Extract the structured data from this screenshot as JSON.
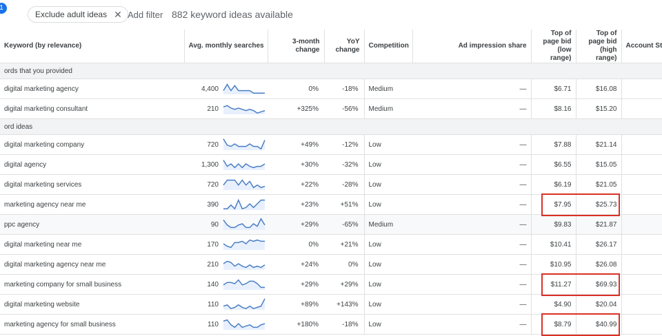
{
  "filter_badge": "1",
  "filter_chip": {
    "label": "Exclude adult ideas"
  },
  "add_filter": "Add filter",
  "ideas_count": "882 keyword ideas available",
  "columns": {
    "keyword": "Keyword (by relevance)",
    "searches": "Avg. monthly searches",
    "three_month": "3-month change",
    "yoy": "YoY change",
    "competition": "Competition",
    "ad_impression": "Ad impression share",
    "bid_low": "Top of page bid (low range)",
    "bid_high": "Top of page bid (high range)",
    "account_status": "Account Sta"
  },
  "sections": [
    {
      "label": "ords that you provided",
      "rows": [
        {
          "keyword": "digital marketing agency",
          "searches": "4,400",
          "three_month": "0%",
          "yoy": "-18%",
          "competition": "Medium",
          "ad_share": "—",
          "bid_low": "$6.71",
          "bid_high": "$16.08",
          "trend": [
            3,
            8,
            3,
            7,
            3,
            3,
            3,
            3,
            1,
            1,
            1,
            1
          ]
        },
        {
          "keyword": "digital marketing consultant",
          "searches": "210",
          "three_month": "+325%",
          "yoy": "-56%",
          "competition": "Medium",
          "ad_share": "—",
          "bid_low": "$8.16",
          "bid_high": "$15.20",
          "trend": [
            6,
            7,
            5,
            4,
            5,
            4,
            3,
            4,
            3,
            1,
            2,
            3
          ]
        }
      ]
    },
    {
      "label": "ord ideas",
      "rows": [
        {
          "keyword": "digital marketing company",
          "searches": "720",
          "three_month": "+49%",
          "yoy": "-12%",
          "competition": "Low",
          "ad_share": "—",
          "bid_low": "$7.88",
          "bid_high": "$21.14",
          "trend": [
            9,
            4,
            3,
            5,
            3,
            3,
            3,
            5,
            3,
            3,
            1,
            8
          ]
        },
        {
          "keyword": "digital agency",
          "searches": "1,300",
          "three_month": "+30%",
          "yoy": "-32%",
          "competition": "Low",
          "ad_share": "—",
          "bid_low": "$6.55",
          "bid_high": "$15.05",
          "trend": [
            8,
            3,
            5,
            2,
            5,
            2,
            5,
            3,
            2,
            3,
            3,
            5
          ]
        },
        {
          "keyword": "digital marketing services",
          "searches": "720",
          "three_month": "+22%",
          "yoy": "-28%",
          "competition": "Low",
          "ad_share": "—",
          "bid_low": "$6.19",
          "bid_high": "$21.05",
          "trend": [
            4,
            8,
            8,
            8,
            4,
            8,
            4,
            7,
            2,
            4,
            2,
            3
          ]
        },
        {
          "keyword": "marketing agency near me",
          "searches": "390",
          "three_month": "+23%",
          "yoy": "+51%",
          "competition": "Low",
          "ad_share": "—",
          "bid_low": "$7.95",
          "bid_high": "$25.73",
          "trend": [
            1,
            1,
            4,
            1,
            8,
            1,
            2,
            5,
            2,
            5,
            8,
            8
          ]
        },
        {
          "keyword": "ppc agency",
          "searches": "90",
          "three_month": "+29%",
          "yoy": "-65%",
          "competition": "Medium",
          "ad_share": "—",
          "bid_low": "$9.83",
          "bid_high": "$21.87",
          "trend": [
            8,
            4,
            2,
            2,
            4,
            5,
            2,
            2,
            5,
            3,
            9,
            4
          ]
        },
        {
          "keyword": "digital marketing near me",
          "searches": "170",
          "three_month": "0%",
          "yoy": "+21%",
          "competition": "Low",
          "ad_share": "—",
          "bid_low": "$10.41",
          "bid_high": "$26.17",
          "trend": [
            5,
            3,
            2,
            6,
            6,
            7,
            5,
            8,
            7,
            8,
            7,
            7
          ]
        },
        {
          "keyword": "digital marketing agency near me",
          "searches": "210",
          "three_month": "+24%",
          "yoy": "0%",
          "competition": "Low",
          "ad_share": "—",
          "bid_low": "$10.95",
          "bid_high": "$26.08",
          "trend": [
            5,
            7,
            6,
            3,
            5,
            3,
            2,
            4,
            2,
            3,
            2,
            4
          ]
        },
        {
          "keyword": "marketing company for small business",
          "searches": "140",
          "three_month": "+29%",
          "yoy": "+29%",
          "competition": "Low",
          "ad_share": "—",
          "bid_low": "$11.27",
          "bid_high": "$69.93",
          "trend": [
            4,
            6,
            6,
            5,
            8,
            4,
            5,
            7,
            7,
            5,
            2,
            2
          ]
        },
        {
          "keyword": "digital marketing website",
          "searches": "110",
          "three_month": "+89%",
          "yoy": "+143%",
          "competition": "Low",
          "ad_share": "—",
          "bid_low": "$4.90",
          "bid_high": "$20.04",
          "trend": [
            3,
            4,
            1,
            2,
            4,
            2,
            1,
            3,
            1,
            2,
            3,
            9
          ]
        },
        {
          "keyword": "marketing agency for small business",
          "searches": "110",
          "three_month": "+180%",
          "yoy": "-18%",
          "competition": "Low",
          "ad_share": "—",
          "bid_low": "$8.79",
          "bid_high": "$40.99",
          "trend": [
            7,
            8,
            4,
            2,
            5,
            2,
            3,
            4,
            2,
            2,
            4,
            5
          ]
        }
      ]
    }
  ],
  "colors": {
    "sparkline": "#4a7ec2",
    "sparkline_fill": "#e8f0fe",
    "highlight": "#d93025"
  }
}
